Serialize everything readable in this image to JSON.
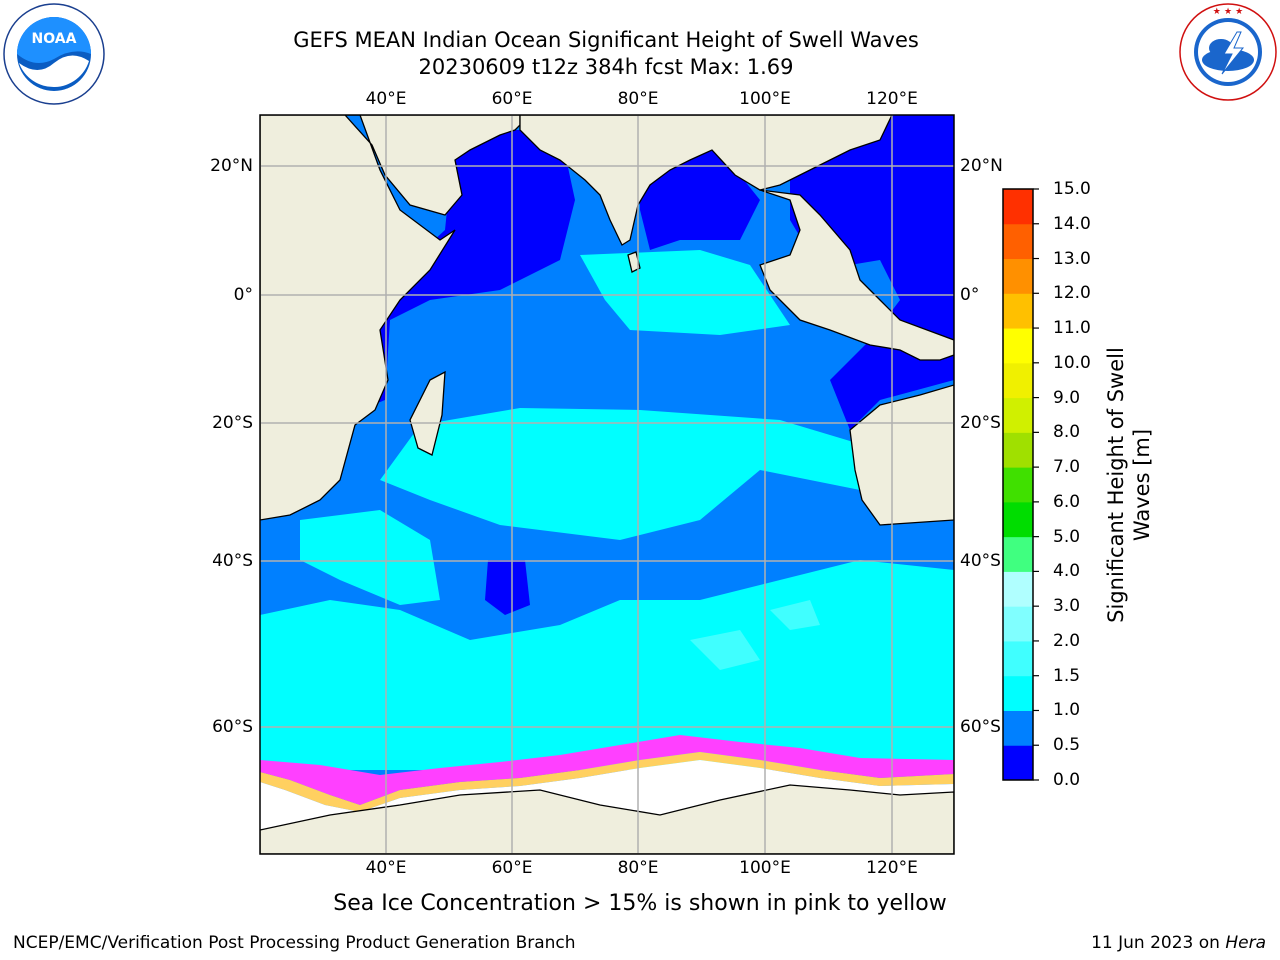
{
  "title": {
    "line1": "GEFS MEAN Indian Ocean Significant Height of Swell Waves",
    "line2": "20230609 t12z 384h fcst   Max: 1.69"
  },
  "logos": {
    "left": {
      "icon": "noaa-logo",
      "text": "NOAA"
    },
    "right": {
      "icon": "nws-logo",
      "text": "NATIONAL WEATHER SERVICE"
    }
  },
  "axes": {
    "lon_labels": [
      "40°E",
      "60°E",
      "80°E",
      "100°E",
      "120°E"
    ],
    "lat_labels": [
      "20°N",
      "0°",
      "20°S",
      "40°S",
      "60°S"
    ]
  },
  "colorbar": {
    "label_line1": "Significant Height of Swell",
    "label_line2": "Waves [m]",
    "ticks": [
      "0.0",
      "0.5",
      "1.0",
      "1.5",
      "2.0",
      "3.0",
      "4.0",
      "5.0",
      "6.0",
      "7.0",
      "8.0",
      "9.0",
      "10.0",
      "11.0",
      "12.0",
      "13.0",
      "14.0",
      "15.0"
    ],
    "colors": [
      "#0000ff",
      "#0080ff",
      "#00ffff",
      "#40ffff",
      "#80ffff",
      "#b0ffff",
      "#40ff80",
      "#00dd00",
      "#40e000",
      "#a0e000",
      "#d0f000",
      "#f0f000",
      "#ffff00",
      "#ffc000",
      "#ff9000",
      "#ff6000",
      "#ff3000",
      "#ff0000"
    ]
  },
  "map_colors": {
    "land": "#efeedd",
    "ice": "#ffffff",
    "deep_blue": "#0000ff",
    "mid_blue": "#0080ff",
    "cyan": "#00ffff",
    "light_cyan": "#40ffff",
    "ice_edge_pink": "#ff40ff",
    "ice_edge_yellow": "#ffd060",
    "grid": "#b0b0b0"
  },
  "note": "Sea Ice Concentration > 15% is shown in pink to yellow",
  "footer": {
    "left": "NCEP/EMC/Verification Post Processing Product Generation Branch",
    "right_prefix": "11 Jun 2023 on ",
    "right_host": "Hera"
  }
}
